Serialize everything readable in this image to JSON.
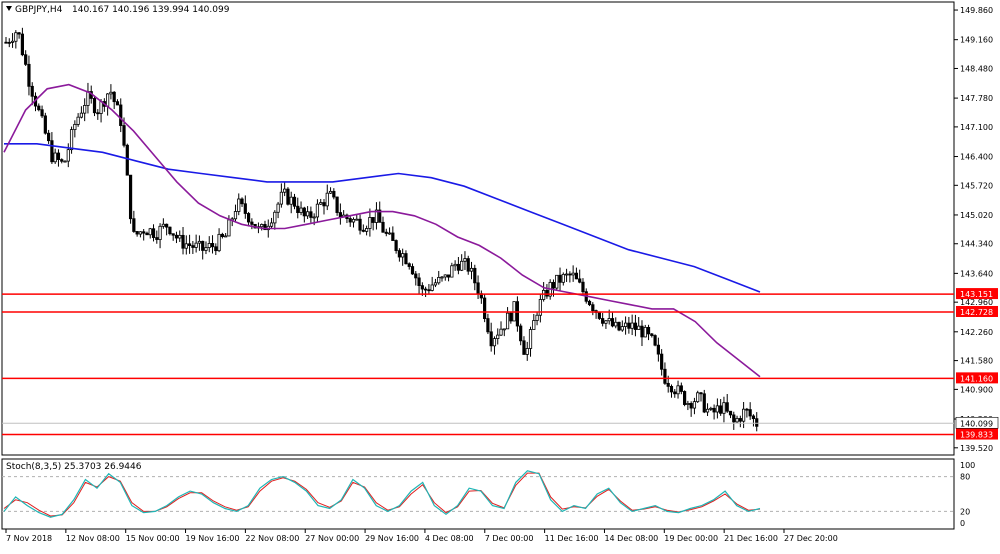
{
  "chart_data": {
    "type": "candlestick",
    "header": {
      "symbol": "GBPJPY,H4",
      "values": "140.167 140.196 139.994 140.099"
    },
    "y_ticks": [
      "149.860",
      "149.160",
      "148.480",
      "147.780",
      "147.100",
      "146.400",
      "145.720",
      "145.020",
      "144.340",
      "143.640",
      "142.960",
      "142.260",
      "141.580",
      "140.900",
      "140.200",
      "139.520"
    ],
    "ylim": [
      139.35,
      150.05
    ],
    "current_price": "140.099",
    "horizontal_lines": [
      {
        "value": 143.151,
        "label": "143.151"
      },
      {
        "value": 142.728,
        "label": "142.728"
      },
      {
        "value": 141.16,
        "label": "141.160"
      },
      {
        "value": 139.833,
        "label": "139.833"
      }
    ],
    "x_ticks": [
      "7 Nov 2018",
      "12 Nov 08:00",
      "15 Nov 00:00",
      "19 Nov 16:00",
      "22 Nov 08:00",
      "27 Nov 00:00",
      "29 Nov 16:00",
      "4 Dec 08:00",
      "7 Dec 00:00",
      "11 Dec 16:00",
      "14 Dec 08:00",
      "19 Dec 00:00",
      "21 Dec 16:00",
      "27 Dec 20:00"
    ],
    "price_path": [
      149.1,
      149.4,
      148.2,
      147.3,
      146.4,
      146.2,
      147.2,
      147.8,
      147.5,
      148.0,
      147.2,
      144.5,
      144.7,
      144.6,
      144.8,
      144.4,
      144.3,
      144.2,
      144.3,
      144.5,
      145.3,
      145.0,
      144.6,
      145.0,
      145.5,
      145.3,
      144.9,
      145.2,
      145.5,
      145.0,
      144.9,
      144.8,
      145.0,
      144.5,
      144.2,
      143.9,
      143.2,
      143.4,
      143.5,
      143.9,
      143.8,
      143.2,
      142.1,
      142.4,
      142.8,
      141.7,
      142.8,
      143.3,
      143.5,
      143.6,
      143.2,
      142.8,
      142.5,
      142.3,
      142.4,
      142.3,
      142.0,
      141.2,
      140.9,
      140.6,
      140.7,
      140.3,
      140.5,
      140.1,
      140.4,
      140.1
    ],
    "ma_fast": {
      "color": "#8b1a9b",
      "values": [
        146.5,
        147.5,
        148.0,
        148.1,
        147.9,
        147.5,
        147.0,
        146.4,
        145.8,
        145.3,
        145.0,
        144.8,
        144.7,
        144.7,
        144.8,
        144.9,
        145.0,
        145.1,
        145.1,
        145.0,
        144.8,
        144.5,
        144.3,
        144.0,
        143.6,
        143.3,
        143.2,
        143.1,
        143.0,
        142.9,
        142.8,
        142.8,
        142.5,
        142.0,
        141.6,
        141.2
      ]
    },
    "ma_slow": {
      "color": "#1a1ae6",
      "values": [
        146.7,
        146.7,
        146.6,
        146.5,
        146.3,
        146.1,
        146.0,
        145.9,
        145.8,
        145.8,
        145.8,
        145.9,
        146.0,
        145.9,
        145.7,
        145.4,
        145.1,
        144.8,
        144.5,
        144.2,
        144.0,
        143.8,
        143.5,
        143.2
      ]
    },
    "stochastic": {
      "label": "Stoch(8,3,5) 25.3703 26.9446",
      "levels": [
        "100",
        "80",
        "20",
        "0"
      ],
      "main": {
        "color": "#1fb5b5",
        "values": [
          20,
          45,
          30,
          18,
          10,
          15,
          40,
          75,
          60,
          85,
          70,
          30,
          18,
          20,
          30,
          45,
          55,
          50,
          35,
          25,
          20,
          30,
          60,
          75,
          80,
          70,
          55,
          30,
          25,
          40,
          75,
          60,
          30,
          20,
          30,
          55,
          70,
          30,
          15,
          30,
          60,
          55,
          30,
          25,
          70,
          90,
          85,
          40,
          20,
          30,
          25,
          50,
          60,
          35,
          20,
          25,
          30,
          20,
          18,
          25,
          30,
          40,
          55,
          30,
          20,
          25
        ]
      },
      "signal": {
        "color": "#e02020",
        "values": [
          25,
          40,
          35,
          22,
          12,
          14,
          35,
          70,
          62,
          80,
          72,
          35,
          20,
          20,
          28,
          42,
          52,
          52,
          38,
          28,
          22,
          28,
          55,
          72,
          78,
          72,
          58,
          35,
          27,
          38,
          70,
          62,
          35,
          22,
          28,
          50,
          66,
          35,
          18,
          28,
          55,
          56,
          34,
          26,
          65,
          86,
          86,
          45,
          24,
          28,
          26,
          46,
          58,
          38,
          22,
          24,
          28,
          22,
          19,
          23,
          28,
          38,
          50,
          33,
          22,
          24
        ]
      }
    },
    "colors": {
      "background": "#ffffff",
      "grid": "#cfcfcf",
      "candle": "#000000",
      "level_line": "#ff0000",
      "level_label_bg": "#ff0000",
      "current_label_bg": "#ffffff"
    }
  }
}
